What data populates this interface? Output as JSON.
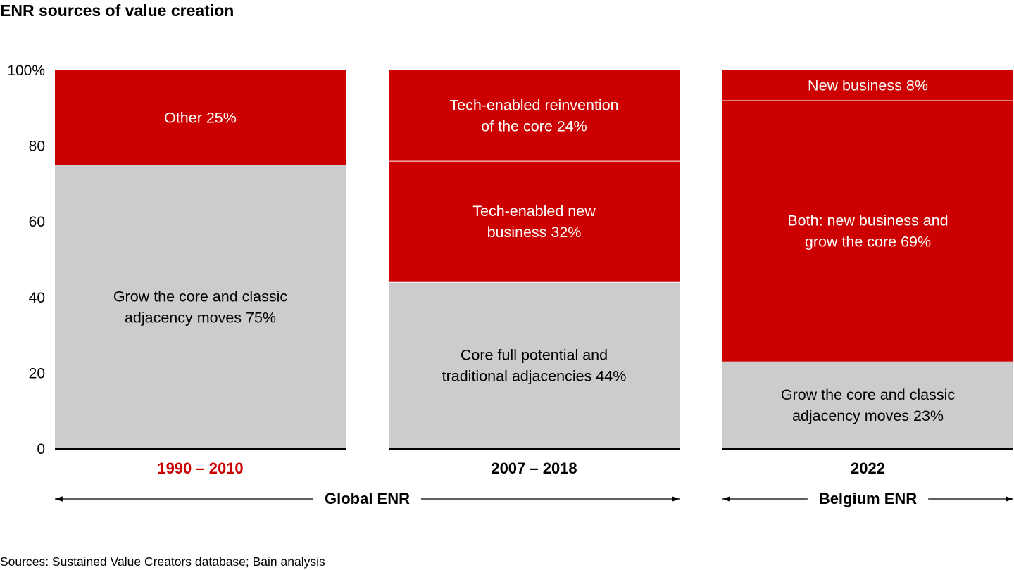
{
  "title": "ENR sources of value creation",
  "source": "Sources: Sustained Value Creators database; Bain analysis",
  "colors": {
    "red": "#cc0000",
    "gray": "#cccccc",
    "highlight": "#cc0000",
    "text": "#000000"
  },
  "chart_data": {
    "type": "bar",
    "stacked": true,
    "title": "ENR sources of value creation",
    "ylim": [
      0,
      100
    ],
    "yticks": [
      "0",
      "20",
      "40",
      "60",
      "80",
      "100%"
    ],
    "grid": false,
    "categories": [
      "1990 – 2010",
      "2007 – 2018",
      "2022"
    ],
    "highlight_category": 0,
    "bars": [
      {
        "category": "1990 – 2010",
        "segments": [
          {
            "label": [
              "Grow the core and classic",
              "adjacency moves 75%"
            ],
            "value": 75,
            "color": "gray"
          },
          {
            "label": [
              "Other 25%"
            ],
            "value": 25,
            "color": "red"
          }
        ]
      },
      {
        "category": "2007 – 2018",
        "segments": [
          {
            "label": [
              "Core full potential and",
              "traditional adjacencies 44%"
            ],
            "value": 44,
            "color": "gray"
          },
          {
            "label": [
              "Tech-enabled new",
              "business 32%"
            ],
            "value": 32,
            "color": "red"
          },
          {
            "label": [
              "Tech-enabled reinvention",
              "of the core 24%"
            ],
            "value": 24,
            "color": "red"
          }
        ]
      },
      {
        "category": "2022",
        "segments": [
          {
            "label": [
              "Grow the core and classic",
              "adjacency moves 23%"
            ],
            "value": 23,
            "color": "gray"
          },
          {
            "label": [
              "Both: new business and",
              "grow the core 69%"
            ],
            "value": 69,
            "color": "red"
          },
          {
            "label": [
              "New business 8%"
            ],
            "value": 8,
            "color": "red"
          }
        ]
      }
    ],
    "groups": [
      {
        "label": "Global ENR",
        "categories": [
          0,
          1
        ]
      },
      {
        "label": "Belgium ENR",
        "categories": [
          2
        ]
      }
    ]
  }
}
